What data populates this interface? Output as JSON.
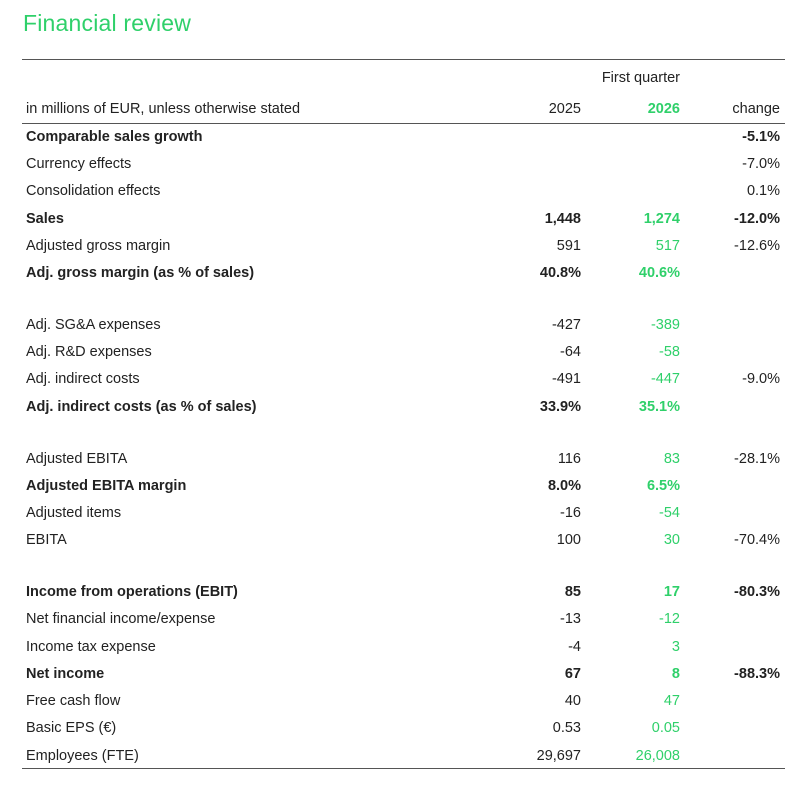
{
  "title": "Financial review",
  "header": {
    "group": "First quarter",
    "label": "in millions of EUR, unless otherwise stated",
    "col_2025": "2025",
    "col_2026": "2026",
    "col_change": "change"
  },
  "rows": [
    {
      "label": "Comparable sales growth",
      "v2025": "",
      "v2026": "",
      "change": "-5.1%",
      "bold": true
    },
    {
      "label": "Currency effects",
      "v2025": "",
      "v2026": "",
      "change": "-7.0%",
      "bold": false
    },
    {
      "label": "Consolidation effects",
      "v2025": "",
      "v2026": "",
      "change": "0.1%",
      "bold": false
    },
    {
      "label": "Sales",
      "v2025": "1,448",
      "v2026": "1,274",
      "change": "-12.0%",
      "bold": true
    },
    {
      "label": "Adjusted gross margin",
      "v2025": "591",
      "v2026": "517",
      "change": "-12.6%",
      "bold": false
    },
    {
      "label": "Adj. gross margin (as % of sales)",
      "v2025": "40.8%",
      "v2026": "40.6%",
      "change": "",
      "bold": true
    },
    {
      "label": "Adj. SG&A expenses",
      "v2025": "-427",
      "v2026": "-389",
      "change": "",
      "bold": false
    },
    {
      "label": "Adj. R&D expenses",
      "v2025": "-64",
      "v2026": "-58",
      "change": "",
      "bold": false
    },
    {
      "label": "Adj. indirect costs",
      "v2025": "-491",
      "v2026": "-447",
      "change": "-9.0%",
      "bold": false
    },
    {
      "label": "Adj. indirect costs (as % of sales)",
      "v2025": "33.9%",
      "v2026": "35.1%",
      "change": "",
      "bold": true
    },
    {
      "label": "Adjusted EBITA",
      "v2025": "116",
      "v2026": "83",
      "change": "-28.1%",
      "bold": false
    },
    {
      "label": "Adjusted EBITA margin",
      "v2025": "8.0%",
      "v2026": "6.5%",
      "change": "",
      "bold": true
    },
    {
      "label": "Adjusted items",
      "v2025": "-16",
      "v2026": "-54",
      "change": "",
      "bold": false
    },
    {
      "label": "EBITA",
      "v2025": "100",
      "v2026": "30",
      "change": "-70.4%",
      "bold": false
    },
    {
      "label": "Income from operations (EBIT)",
      "v2025": "85",
      "v2026": "17",
      "change": "-80.3%",
      "bold": true
    },
    {
      "label": "Net financial income/expense",
      "v2025": "-13",
      "v2026": "-12",
      "change": "",
      "bold": false
    },
    {
      "label": "Income tax expense",
      "v2025": "-4",
      "v2026": "3",
      "change": "",
      "bold": false
    },
    {
      "label": "Net income",
      "v2025": "67",
      "v2026": "8",
      "change": "-88.3%",
      "bold": true
    },
    {
      "label": "Free cash flow",
      "v2025": "40",
      "v2026": "47",
      "change": "",
      "bold": false
    },
    {
      "label": "Basic EPS (€)",
      "v2025": "0.53",
      "v2026": "0.05",
      "change": "",
      "bold": false
    },
    {
      "label": "Employees (FTE)",
      "v2025": "29,697",
      "v2026": "26,008",
      "change": "",
      "bold": false
    }
  ],
  "colors": {
    "accent": "#2fd06a",
    "text": "#222222",
    "rule": "#555555"
  }
}
